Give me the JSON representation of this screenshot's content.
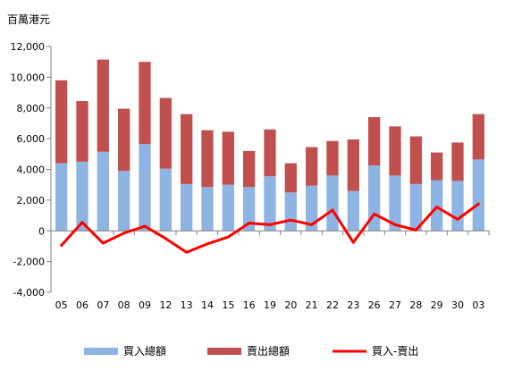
{
  "chart_data": {
    "type": "bar",
    "stacked": true,
    "unit_label": "百萬港元",
    "categories": [
      "05",
      "06",
      "07",
      "08",
      "09",
      "12",
      "13",
      "14",
      "15",
      "16",
      "19",
      "20",
      "21",
      "22",
      "23",
      "26",
      "27",
      "28",
      "29",
      "30",
      "03"
    ],
    "series": [
      {
        "name": "買入總額",
        "kind": "bar",
        "color": "#8db4e2",
        "values": [
          4400,
          4500,
          5150,
          3900,
          5650,
          4050,
          3050,
          2850,
          3000,
          2850,
          3550,
          2500,
          2950,
          3600,
          2600,
          4250,
          3600,
          3050,
          3300,
          3250,
          4650
        ]
      },
      {
        "name": "賣出總額",
        "kind": "bar",
        "color": "#c0504d",
        "values": [
          5400,
          3950,
          6000,
          4050,
          5350,
          4600,
          4550,
          3700,
          3450,
          2350,
          3050,
          1900,
          2500,
          2250,
          3350,
          3150,
          3200,
          3100,
          1800,
          2500,
          2950
        ]
      },
      {
        "name": "買入-賣出",
        "kind": "line",
        "color": "#ff0000",
        "values": [
          -950,
          550,
          -800,
          -150,
          300,
          -500,
          -1400,
          -850,
          -400,
          500,
          400,
          700,
          400,
          1350,
          -750,
          1100,
          400,
          50,
          1550,
          750,
          1750
        ]
      }
    ],
    "ylim": [
      -4000,
      12000
    ],
    "yticks": [
      -4000,
      -2000,
      0,
      2000,
      4000,
      6000,
      8000,
      10000,
      12000
    ],
    "ytick_labels": [
      "-4,000",
      "-2,000",
      "0",
      "2,000",
      "4,000",
      "6,000",
      "8,000",
      "10,000",
      "12,000"
    ],
    "grid": false,
    "legend_position": "bottom"
  }
}
